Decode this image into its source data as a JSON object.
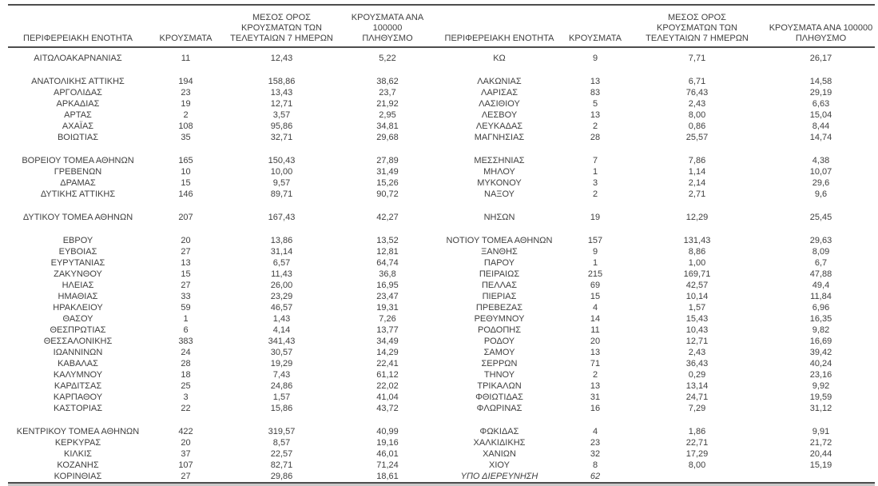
{
  "colors": {
    "background": "#ffffff",
    "text": "#3f3f3f",
    "rule": "#4d4d4d"
  },
  "columns": [
    "ΠΕΡΙΦΕΡΕΙΑΚΗ ΕΝΟΤΗΤΑ",
    "ΚΡΟΥΣΜΑΤΑ",
    "ΜΕΣΟΣ ΟΡΟΣ\nΚΡΟΥΣΜΑΤΩΝ ΤΩΝ\nΤΕΛΕΥΤΑΙΩΝ 7 ΗΜΕΡΩΝ",
    "ΚΡΟΥΣΜΑΤΑ ΑΝΑ 100000\nΠΛΗΘΥΣΜΟ"
  ],
  "left_table": {
    "groups": [
      [
        [
          "ΑΙΤΩΛΟΑΚΑΡΝΑΝΙΑΣ",
          "11",
          "12,43",
          "5,22"
        ]
      ],
      [
        [
          "ΑΝΑΤΟΛΙΚΗΣ ΑΤΤΙΚΗΣ",
          "194",
          "158,86",
          "38,62"
        ],
        [
          "ΑΡΓΟΛΙΔΑΣ",
          "23",
          "13,43",
          "23,7"
        ],
        [
          "ΑΡΚΑΔΙΑΣ",
          "19",
          "12,71",
          "21,92"
        ],
        [
          "ΑΡΤΑΣ",
          "2",
          "3,57",
          "2,95"
        ],
        [
          "ΑΧΑΪΑΣ",
          "108",
          "95,86",
          "34,81"
        ],
        [
          "ΒΟΙΩΤΙΑΣ",
          "35",
          "32,71",
          "29,68"
        ]
      ],
      [
        [
          "ΒΟΡΕΙΟΥ ΤΟΜΕΑ ΑΘΗΝΩΝ",
          "165",
          "150,43",
          "27,89"
        ],
        [
          "ΓΡΕΒΕΝΩΝ",
          "10",
          "10,00",
          "31,49"
        ],
        [
          "ΔΡΑΜΑΣ",
          "15",
          "9,57",
          "15,26"
        ],
        [
          "ΔΥΤΙΚΗΣ ΑΤΤΙΚΗΣ",
          "146",
          "89,71",
          "90,72"
        ]
      ],
      [
        [
          "ΔΥΤΙΚΟΥ ΤΟΜΕΑ ΑΘΗΝΩΝ",
          "207",
          "167,43",
          "42,27"
        ]
      ],
      [
        [
          "ΕΒΡΟΥ",
          "20",
          "13,86",
          "13,52"
        ],
        [
          "ΕΥΒΟΙΑΣ",
          "27",
          "31,14",
          "12,81"
        ],
        [
          "ΕΥΡΥΤΑΝΙΑΣ",
          "13",
          "6,57",
          "64,74"
        ],
        [
          "ΖΑΚΥΝΘΟΥ",
          "15",
          "11,43",
          "36,8"
        ],
        [
          "ΗΛΕΙΑΣ",
          "27",
          "26,00",
          "16,95"
        ],
        [
          "ΗΜΑΘΙΑΣ",
          "33",
          "23,29",
          "23,47"
        ],
        [
          "ΗΡΑΚΛΕΙΟΥ",
          "59",
          "46,57",
          "19,31"
        ],
        [
          "ΘΑΣΟΥ",
          "1",
          "1,43",
          "7,26"
        ],
        [
          "ΘΕΣΠΡΩΤΙΑΣ",
          "6",
          "4,14",
          "13,77"
        ],
        [
          "ΘΕΣΣΑΛΟΝΙΚΗΣ",
          "383",
          "341,43",
          "34,49"
        ],
        [
          "ΙΩΑΝΝΙΝΩΝ",
          "24",
          "30,57",
          "14,29"
        ],
        [
          "ΚΑΒΑΛΑΣ",
          "28",
          "19,29",
          "22,41"
        ],
        [
          "ΚΑΛΥΜΝΟΥ",
          "18",
          "7,43",
          "61,12"
        ],
        [
          "ΚΑΡΔΙΤΣΑΣ",
          "25",
          "24,86",
          "22,02"
        ],
        [
          "ΚΑΡΠΑΘΟΥ",
          "3",
          "1,57",
          "41,04"
        ],
        [
          "ΚΑΣΤΟΡΙΑΣ",
          "22",
          "15,86",
          "43,72"
        ]
      ],
      [
        [
          "ΚΕΝΤΡΙΚΟΥ ΤΟΜΕΑ ΑΘΗΝΩΝ",
          "422",
          "319,57",
          "40,99"
        ],
        [
          "ΚΕΡΚΥΡΑΣ",
          "20",
          "8,57",
          "19,16"
        ],
        [
          "ΚΙΛΚΙΣ",
          "37",
          "22,57",
          "46,01"
        ],
        [
          "ΚΟΖΑΝΗΣ",
          "107",
          "82,71",
          "71,24"
        ],
        [
          "ΚΟΡΙΝΘΙΑΣ",
          "27",
          "29,86",
          "18,61"
        ]
      ]
    ]
  },
  "right_table": {
    "groups": [
      [
        [
          "ΚΩ",
          "9",
          "7,71",
          "26,17"
        ]
      ],
      [
        [
          "ΛΑΚΩΝΙΑΣ",
          "13",
          "6,71",
          "14,58"
        ],
        [
          "ΛΑΡΙΣΑΣ",
          "83",
          "76,43",
          "29,19"
        ],
        [
          "ΛΑΣΙΘΙΟΥ",
          "5",
          "2,43",
          "6,63"
        ],
        [
          "ΛΕΣΒΟΥ",
          "13",
          "8,00",
          "15,04"
        ],
        [
          "ΛΕΥΚΑΔΑΣ",
          "2",
          "0,86",
          "8,44"
        ],
        [
          "ΜΑΓΝΗΣΙΑΣ",
          "28",
          "25,57",
          "14,74"
        ]
      ],
      [
        [
          "ΜΕΣΣΗΝΙΑΣ",
          "7",
          "7,86",
          "4,38"
        ],
        [
          "ΜΗΛΟΥ",
          "1",
          "1,14",
          "10,07"
        ],
        [
          "ΜΥΚΟΝΟΥ",
          "3",
          "2,14",
          "29,6"
        ],
        [
          "ΝΑΞΟΥ",
          "2",
          "2,71",
          "9,6"
        ]
      ],
      [
        [
          "ΝΗΣΩΝ",
          "19",
          "12,29",
          "25,45"
        ]
      ],
      [
        [
          "ΝΟΤΙΟΥ ΤΟΜΕΑ ΑΘΗΝΩΝ",
          "157",
          "131,43",
          "29,63"
        ],
        [
          "ΞΑΝΘΗΣ",
          "9",
          "8,86",
          "8,09"
        ],
        [
          "ΠΑΡΟΥ",
          "1",
          "1,00",
          "6,7"
        ],
        [
          "ΠΕΙΡΑΙΩΣ",
          "215",
          "169,71",
          "47,88"
        ],
        [
          "ΠΕΛΛΑΣ",
          "69",
          "42,57",
          "49,4"
        ],
        [
          "ΠΙΕΡΙΑΣ",
          "15",
          "10,14",
          "11,84"
        ],
        [
          "ΠΡΕΒΕΖΑΣ",
          "4",
          "1,57",
          "6,96"
        ],
        [
          "ΡΕΘΥΜΝΟΥ",
          "14",
          "15,43",
          "16,35"
        ],
        [
          "ΡΟΔΟΠΗΣ",
          "11",
          "10,43",
          "9,82"
        ],
        [
          "ΡΟΔΟΥ",
          "20",
          "12,71",
          "16,69"
        ],
        [
          "ΣΑΜΟΥ",
          "13",
          "2,43",
          "39,42"
        ],
        [
          "ΣΕΡΡΩΝ",
          "71",
          "36,43",
          "40,24"
        ],
        [
          "ΤΗΝΟΥ",
          "2",
          "0,29",
          "23,16"
        ],
        [
          "ΤΡΙΚΑΛΩΝ",
          "13",
          "13,14",
          "9,92"
        ],
        [
          "ΦΘΙΩΤΙΔΑΣ",
          "31",
          "24,71",
          "19,59"
        ],
        [
          "ΦΛΩΡΙΝΑΣ",
          "16",
          "7,29",
          "31,12"
        ]
      ],
      [
        [
          "ΦΩΚΙΔΑΣ",
          "4",
          "1,86",
          "9,91"
        ],
        [
          "ΧΑΛΚΙΔΙΚΗΣ",
          "23",
          "22,71",
          "21,72"
        ],
        [
          "ΧΑΝΙΩΝ",
          "32",
          "17,29",
          "20,44"
        ],
        [
          "ΧΙΟΥ",
          "8",
          "8,00",
          "15,19"
        ],
        [
          "ΥΠΟ ΔΙΕΡΕΥΝΗΣΗ",
          "62",
          "",
          "",
          "italic"
        ]
      ]
    ]
  }
}
